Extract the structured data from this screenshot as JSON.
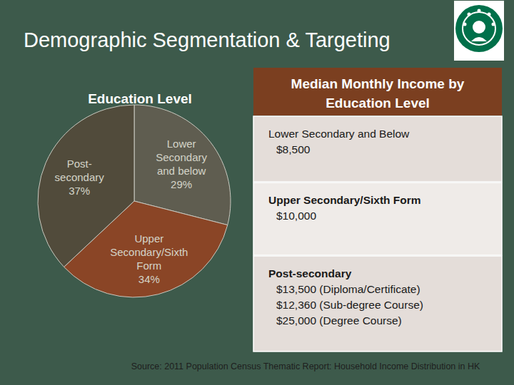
{
  "slide": {
    "title": "Demographic Segmentation & Targeting",
    "source": "Source: 2011 Population Census Thematic Report: Household Income Distribution in HK"
  },
  "chart_data": {
    "type": "pie",
    "title": "Education Level",
    "categories": [
      "Lower Secondary and below",
      "Upper Secondary/Sixth Form",
      "Post-secondary"
    ],
    "values": [
      29,
      34,
      37
    ],
    "value_labels": [
      "29%",
      "34%",
      "37%"
    ],
    "colors": [
      "#5f5d50",
      "#8a4526",
      "#514b3b"
    ],
    "data_labels": true
  },
  "table": {
    "header": "Median Monthly Income by Education Level",
    "rows": [
      {
        "label": "Lower Secondary and Below",
        "lines": [
          "$8,500"
        ]
      },
      {
        "label": "Upper Secondary/Sixth Form",
        "lines": [
          "$10,000"
        ]
      },
      {
        "label": "Post-secondary",
        "lines": [
          "$13,500 (Diploma/Certificate)",
          "$12,360 (Sub-degree Course)",
          "$25,000 (Degree Course)"
        ]
      }
    ]
  }
}
